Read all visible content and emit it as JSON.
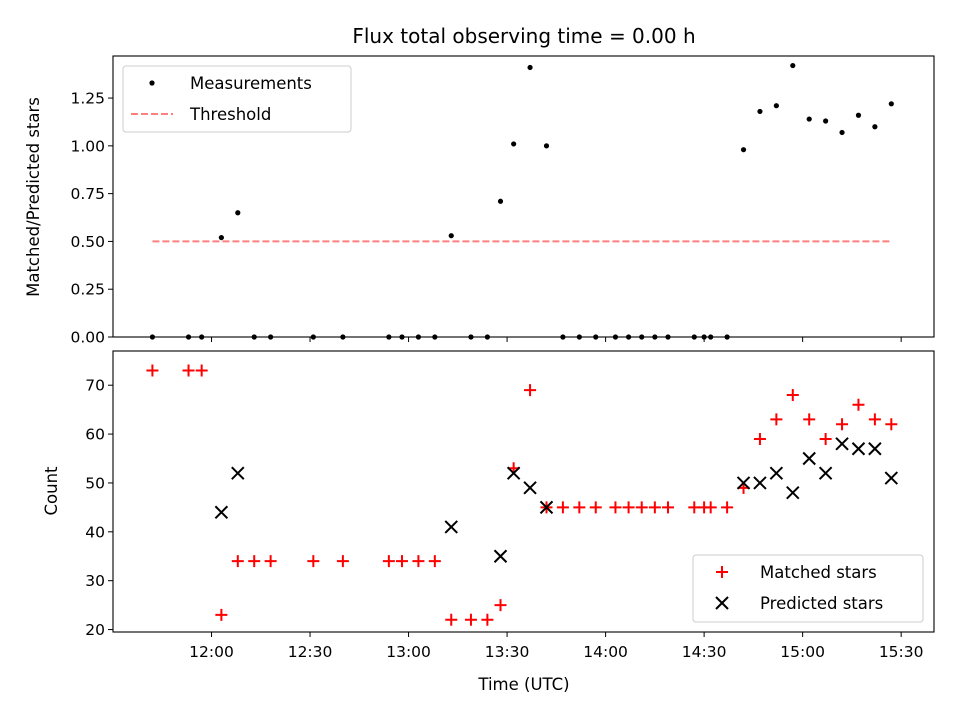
{
  "chart_data": [
    {
      "type": "scatter",
      "title": "Flux total observing time = 0.00 h",
      "ylabel": "Matched/Predicted stars",
      "xlabel": "",
      "ylim": [
        0,
        1.47
      ],
      "yticks": [
        0.0,
        0.25,
        0.5,
        0.75,
        1.0,
        1.25
      ],
      "ytick_labels": [
        "0.00",
        "0.25",
        "0.50",
        "0.75",
        "1.00",
        "1.25"
      ],
      "x_unit": "time",
      "xlim": [
        "11:30",
        "15:40"
      ],
      "legend": "top-left",
      "series": [
        {
          "name": "Measurements",
          "kind": "scatter",
          "color": "#000000",
          "x": [
            "11:42",
            "11:53",
            "11:57",
            "12:03",
            "12:08",
            "12:13",
            "12:18",
            "12:31",
            "12:40",
            "12:54",
            "12:58",
            "13:03",
            "13:08",
            "13:13",
            "13:19",
            "13:24",
            "13:28",
            "13:32",
            "13:37",
            "13:42",
            "13:47",
            "13:52",
            "13:57",
            "14:03",
            "14:07",
            "14:11",
            "14:15",
            "14:19",
            "14:27",
            "14:30",
            "14:32",
            "14:37",
            "14:42",
            "14:47",
            "14:52",
            "14:57",
            "15:02",
            "15:07",
            "15:12",
            "15:17",
            "15:22",
            "15:27"
          ],
          "y": [
            0,
            0,
            0,
            0.52,
            0.65,
            0,
            0,
            0,
            0,
            0,
            0,
            0,
            0,
            0.53,
            0,
            0,
            0.71,
            1.01,
            1.41,
            1.0,
            0,
            0,
            0,
            0,
            0,
            0,
            0,
            0,
            0,
            0,
            0,
            0,
            0.98,
            1.18,
            1.21,
            1.42,
            1.14,
            1.13,
            1.07,
            1.16,
            1.1,
            1.22
          ]
        },
        {
          "name": "Threshold",
          "kind": "line",
          "style": "dashed",
          "color": "#ff7f7f",
          "x": [
            "11:42",
            "15:27"
          ],
          "y": [
            0.5,
            0.5
          ]
        }
      ]
    },
    {
      "type": "scatter",
      "title": "",
      "ylabel": "Count",
      "xlabel": "Time (UTC)",
      "ylim": [
        19.5,
        77
      ],
      "yticks": [
        20,
        30,
        40,
        50,
        60,
        70
      ],
      "ytick_labels": [
        "20",
        "30",
        "40",
        "50",
        "60",
        "70"
      ],
      "x_unit": "time",
      "xlim": [
        "11:30",
        "15:40"
      ],
      "xticks": [
        "12:00",
        "12:30",
        "13:00",
        "13:30",
        "14:00",
        "14:30",
        "15:00",
        "15:30"
      ],
      "legend": "bottom-right",
      "series": [
        {
          "name": "Matched stars",
          "marker": "plus",
          "color": "#ff0000",
          "x": [
            "11:42",
            "11:53",
            "11:57",
            "12:03",
            "12:08",
            "12:13",
            "12:18",
            "12:31",
            "12:40",
            "12:54",
            "12:58",
            "13:03",
            "13:08",
            "13:13",
            "13:19",
            "13:24",
            "13:28",
            "13:32",
            "13:37",
            "13:42",
            "13:47",
            "13:52",
            "13:57",
            "14:03",
            "14:07",
            "14:11",
            "14:15",
            "14:19",
            "14:27",
            "14:30",
            "14:32",
            "14:37",
            "14:42",
            "14:47",
            "14:52",
            "14:57",
            "15:02",
            "15:07",
            "15:12",
            "15:17",
            "15:22",
            "15:27"
          ],
          "y": [
            73,
            73,
            73,
            23,
            34,
            34,
            34,
            34,
            34,
            34,
            34,
            34,
            34,
            22,
            22,
            22,
            25,
            53,
            69,
            45,
            45,
            45,
            45,
            45,
            45,
            45,
            45,
            45,
            45,
            45,
            45,
            45,
            49,
            59,
            63,
            68,
            63,
            59,
            62,
            66,
            63,
            62
          ]
        },
        {
          "name": "Predicted stars",
          "marker": "x",
          "color": "#000000",
          "x": [
            "12:03",
            "12:08",
            "13:13",
            "13:28",
            "13:32",
            "13:37",
            "13:42",
            "14:42",
            "14:47",
            "14:52",
            "14:57",
            "15:02",
            "15:07",
            "15:12",
            "15:17",
            "15:22",
            "15:27"
          ],
          "y": [
            44,
            52,
            41,
            35,
            52,
            49,
            45,
            50,
            50,
            52,
            48,
            55,
            52,
            58,
            57,
            57,
            51
          ]
        }
      ]
    }
  ]
}
